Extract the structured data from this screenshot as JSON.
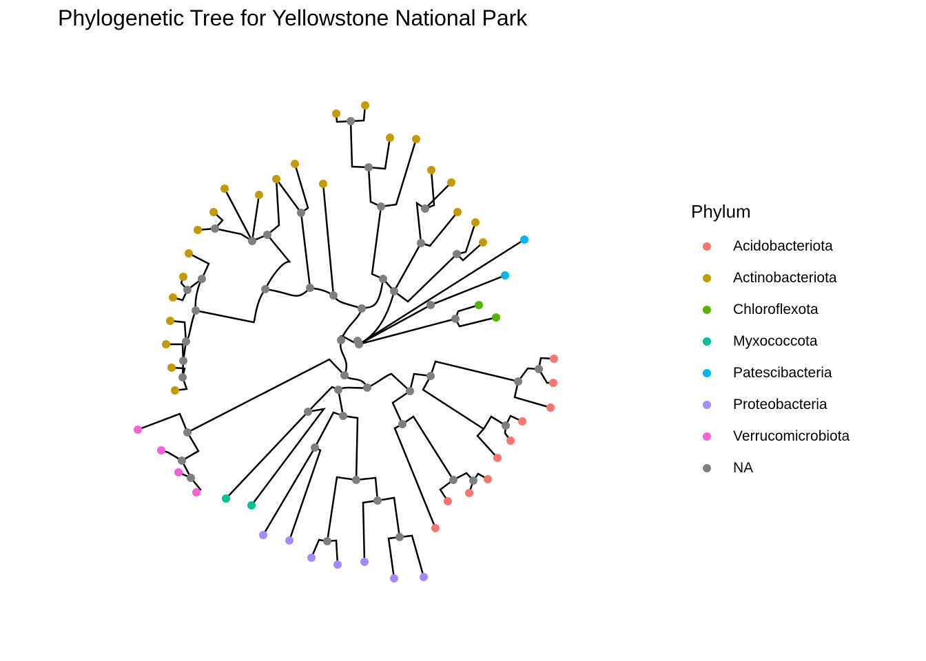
{
  "title": "Phylogenetic Tree for Yellowstone National Park",
  "legend": {
    "title": "Phylum",
    "items": [
      {
        "label": "Acidobacteriota",
        "color": "#F8766D"
      },
      {
        "label": "Actinobacteriota",
        "color": "#C49A00"
      },
      {
        "label": "Chloroflexota",
        "color": "#53B400"
      },
      {
        "label": "Myxococcota",
        "color": "#00C094"
      },
      {
        "label": "Patescibacteria",
        "color": "#00B6EB"
      },
      {
        "label": "Proteobacteria",
        "color": "#A58AFF"
      },
      {
        "label": "Verrucomicrobiota",
        "color": "#FB61D7"
      },
      {
        "label": "NA",
        "color": "#7F7F7F"
      }
    ]
  },
  "tree": {
    "layout": "circular",
    "tip_count": 48,
    "internal_node_phylum": "NA"
  }
}
